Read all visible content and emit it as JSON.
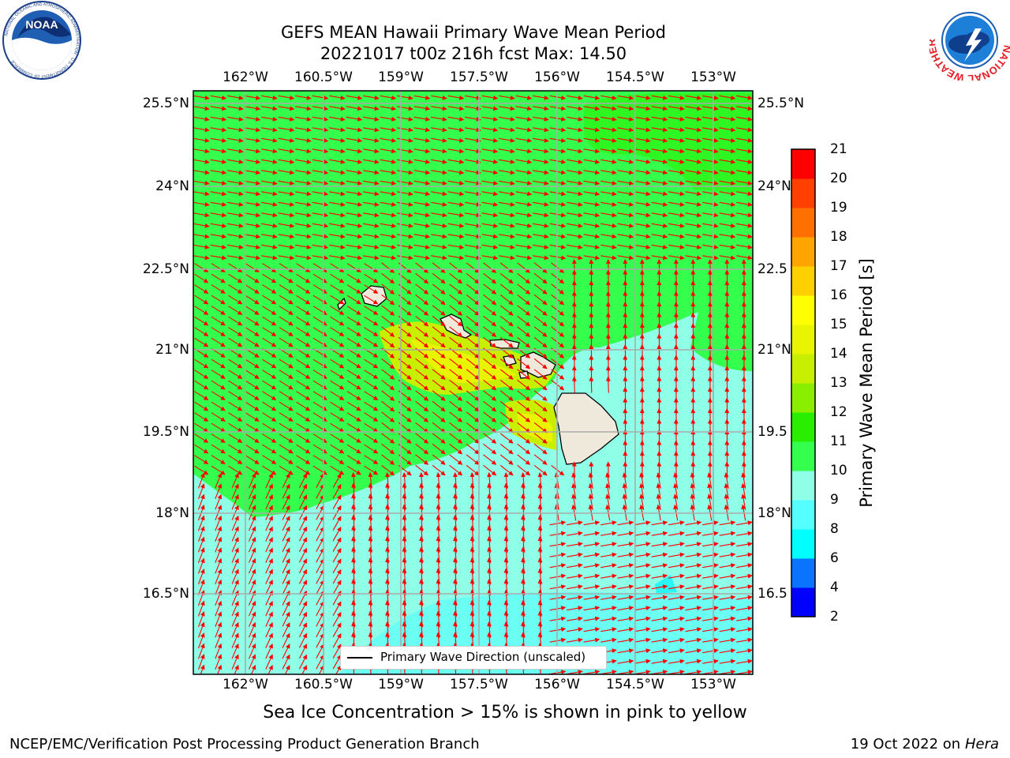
{
  "title": {
    "line1": "GEFS MEAN Hawaii Primary Wave Mean Period",
    "line2": "20221017 t00z 216h fcst   Max: 14.50"
  },
  "logos": {
    "noaa": {
      "text": "NOAA",
      "ring_text": "NATIONAL OCEANIC AND ATMOSPHERIC ADMINISTRATION · U.S. DEPARTMENT OF COMMERCE"
    },
    "nws": {
      "ring_text": "NATIONAL WEATHER SERVICE"
    }
  },
  "map": {
    "lon_ticks": [
      "162°W",
      "160.5°W",
      "159°W",
      "157.5°W",
      "156°W",
      "154.5°W",
      "153°W"
    ],
    "lat_ticks_left": [
      "25.5°N",
      "24°N",
      "22.5°N",
      "21°N",
      "19.5°N",
      "18°N",
      "16.5°N"
    ],
    "lat_ticks_right": [
      "25.5°N",
      "24°N",
      "22.5",
      "21°N",
      "19.5",
      "18°N",
      "16.5"
    ],
    "lon_range": [
      -163.0,
      -152.2
    ],
    "lat_range": [
      14.9,
      25.6
    ],
    "legend_label": "Primary Wave Direction (unscaled)",
    "arrow_color": "#ff0000",
    "land_color": "#efe9dc"
  },
  "colorbar": {
    "label": "Primary Wave Mean Period [s]",
    "ticks": [
      "2",
      "4",
      "6",
      "8",
      "9",
      "10",
      "11",
      "12",
      "13",
      "14",
      "15",
      "16",
      "17",
      "18",
      "19",
      "20",
      "21"
    ],
    "colors": [
      "#0000ff",
      "#0a74ff",
      "#00ffff",
      "#55ffff",
      "#8fffe8",
      "#34ff4c",
      "#2aee00",
      "#8aee00",
      "#c8ee00",
      "#e8f400",
      "#ffff00",
      "#ffd000",
      "#ffa500",
      "#ff7000",
      "#ff4000",
      "#ff0000"
    ]
  },
  "caption": "Sea Ice Concentration > 15% is shown in pink to yellow",
  "footer": {
    "left": "NCEP/EMC/Verification Post Processing Product Generation Branch",
    "right_prefix": "19 Oct 2022 on ",
    "right_host": "Hera"
  }
}
